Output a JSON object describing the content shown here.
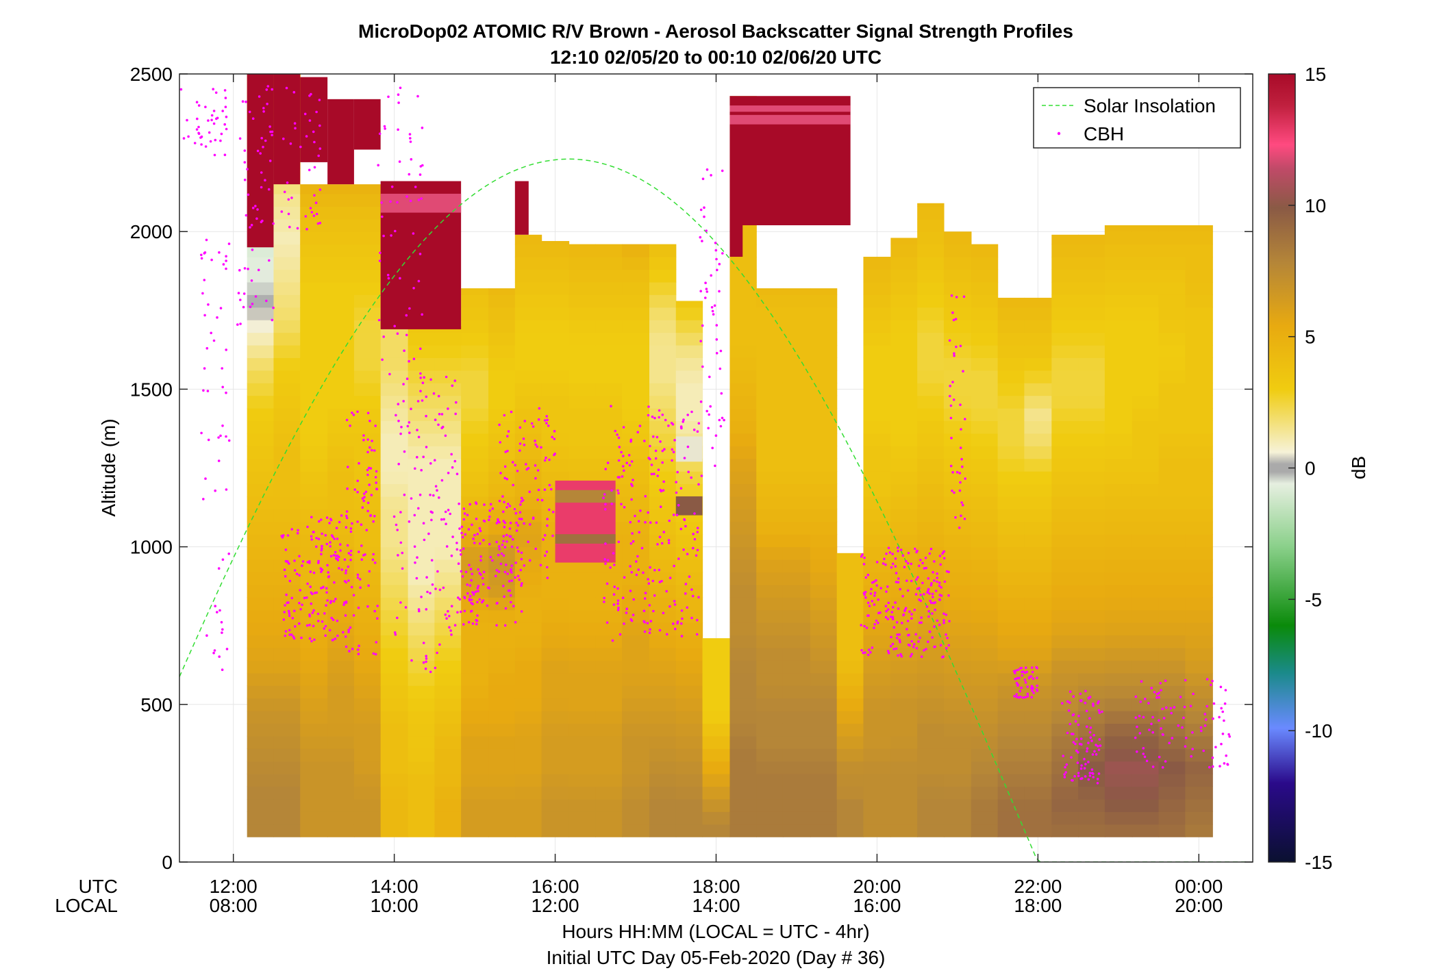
{
  "chart_data": {
    "type": "heatmap",
    "title": "MicroDop02 ATOMIC R/V Brown - Aerosol Backscatter Signal Strength Profiles",
    "subtitle": "12:10 02/05/20 to 00:10 02/06/20  UTC",
    "ylabel": "Altitude (m)",
    "xlabel": "Hours HH:MM  (LOCAL = UTC - 4hr)",
    "footnote": "Initial UTC Day 05-Feb-2020 (Day # 36)",
    "x_row_labels": [
      "UTC",
      "LOCAL"
    ],
    "xlim_hours": [
      11.33,
      24.67
    ],
    "ylim": [
      0,
      2500
    ],
    "y_ticks": [
      0,
      500,
      1000,
      1500,
      2000,
      2500
    ],
    "x_ticks": [
      {
        "hour": 12,
        "utc": "12:00",
        "local": "08:00"
      },
      {
        "hour": 14,
        "utc": "14:00",
        "local": "10:00"
      },
      {
        "hour": 16,
        "utc": "16:00",
        "local": "12:00"
      },
      {
        "hour": 18,
        "utc": "18:00",
        "local": "14:00"
      },
      {
        "hour": 20,
        "utc": "20:00",
        "local": "16:00"
      },
      {
        "hour": 22,
        "utc": "22:00",
        "local": "18:00"
      },
      {
        "hour": 24,
        "utc": "00:00",
        "local": "20:00"
      }
    ],
    "grid": true,
    "colorbar": {
      "label": "dB",
      "min": -15,
      "max": 15,
      "ticks": [
        -15,
        -10,
        -5,
        0,
        5,
        10,
        15
      ]
    },
    "legend": {
      "position": "top-right",
      "entries": [
        "Solar Insolation",
        "CBH"
      ]
    },
    "colors": {
      "solar": "#33dd33",
      "cbh": "#ff00ff"
    },
    "profiles": [
      {
        "t0": 12.17,
        "t1": 12.5,
        "top": 2500,
        "v": [
          8,
          8,
          7.5,
          7,
          6,
          5.5,
          5,
          4.5,
          4,
          3.5,
          3,
          2,
          0.5,
          -0.5,
          -1,
          0.5,
          2,
          3,
          4
        ]
      },
      {
        "t0": 12.5,
        "t1": 12.83,
        "top": 2500,
        "v": [
          8,
          8,
          7.5,
          7,
          6,
          5.5,
          5,
          4.5,
          4,
          4,
          3.5,
          3,
          2,
          1.5,
          1,
          1.5,
          2.5,
          3.5,
          4
        ]
      },
      {
        "t0": 12.83,
        "t1": 13.17,
        "top": 2150,
        "v": [
          7,
          7,
          7,
          6.5,
          6,
          5.5,
          5,
          4.5,
          4.5,
          4,
          3.5,
          3,
          3,
          3,
          3,
          3,
          3.5,
          4,
          5
        ]
      },
      {
        "t0": 13.17,
        "t1": 13.5,
        "top": 2150,
        "v": [
          7,
          7,
          7,
          6.5,
          6.5,
          6,
          5.5,
          5,
          4.5,
          4,
          4,
          3.5,
          3,
          3,
          3,
          3,
          3.5,
          4,
          5
        ]
      },
      {
        "t0": 13.5,
        "t1": 13.83,
        "top": 2150,
        "v": [
          7,
          7,
          6.5,
          6.5,
          6,
          5.5,
          5,
          4.5,
          4,
          4,
          3.5,
          3.5,
          3,
          2.5,
          2.5,
          3,
          3.5,
          4,
          5
        ]
      },
      {
        "t0": 13.83,
        "t1": 14.17,
        "top": 2150,
        "v": [
          4.5,
          4.5,
          4,
          4,
          3.5,
          3,
          2.5,
          2,
          1.5,
          1.5,
          1,
          1,
          1.5,
          2,
          2,
          2.5,
          3,
          3.5,
          4
        ]
      },
      {
        "t0": 14.17,
        "t1": 14.5,
        "top": 1700,
        "v": [
          4,
          4,
          4,
          3.5,
          3.5,
          3,
          2.5,
          2,
          1.5,
          1,
          1,
          1,
          1,
          1,
          1.5,
          2,
          2.5,
          3,
          3.5
        ]
      },
      {
        "t0": 14.5,
        "t1": 14.83,
        "top": 1700,
        "v": [
          5,
          5,
          4.5,
          4.5,
          4,
          3.5,
          3,
          2.5,
          2,
          1.5,
          1,
          1,
          1,
          1,
          1.5,
          2,
          2.5,
          3,
          3.5
        ]
      },
      {
        "t0": 14.83,
        "t1": 15.17,
        "top": 1820,
        "v": [
          6.5,
          6.5,
          6,
          6,
          5.5,
          5,
          5,
          5,
          6,
          6.5,
          5,
          4,
          3.5,
          3,
          2.5,
          2.5,
          3,
          3.5,
          4
        ]
      },
      {
        "t0": 15.17,
        "t1": 15.5,
        "top": 1820,
        "v": [
          6.5,
          6.5,
          6,
          6,
          5.5,
          5.5,
          5,
          5,
          6.5,
          7,
          5.5,
          4.5,
          4,
          3.5,
          3,
          3,
          3.5,
          4,
          4.5
        ]
      },
      {
        "t0": 15.5,
        "t1": 15.83,
        "top": 1990,
        "v": [
          6.5,
          6.5,
          6,
          6,
          5.5,
          5.5,
          5,
          5,
          5.5,
          6,
          5,
          4.5,
          4,
          3.5,
          3,
          3,
          3.5,
          4,
          4.5
        ]
      },
      {
        "t0": 15.83,
        "t1": 16.17,
        "top": 1970,
        "v": [
          7,
          7,
          6.5,
          6.5,
          6,
          6,
          5.5,
          5,
          5,
          5,
          4.5,
          4,
          3.5,
          3.5,
          3,
          3,
          3.5,
          4,
          4.5
        ]
      },
      {
        "t0": 16.17,
        "t1": 16.5,
        "top": 1960,
        "v": [
          7,
          7,
          6.5,
          6.5,
          6,
          6,
          5.5,
          5,
          5,
          5,
          4.5,
          4,
          3.5,
          3.5,
          3,
          3,
          3.5,
          4,
          4.5
        ]
      },
      {
        "t0": 16.5,
        "t1": 16.83,
        "top": 1960,
        "v": [
          7,
          7,
          6.5,
          6.5,
          6,
          6,
          5.5,
          5,
          5,
          5,
          4.5,
          4,
          3.5,
          3.5,
          3,
          3,
          3.5,
          4,
          4.5
        ]
      },
      {
        "t0": 16.83,
        "t1": 17.17,
        "top": 1960,
        "v": [
          7.5,
          7.5,
          7,
          7,
          6.5,
          6,
          6,
          5.5,
          5,
          5,
          4.5,
          4,
          3.5,
          3,
          3,
          3,
          3.5,
          4,
          5
        ]
      },
      {
        "t0": 17.17,
        "t1": 17.5,
        "top": 1960,
        "v": [
          8,
          8,
          7.5,
          7,
          6.5,
          6,
          5.5,
          5,
          4.5,
          4,
          3.5,
          3,
          2.5,
          2,
          1.5,
          1.5,
          2,
          3,
          4
        ]
      },
      {
        "t0": 17.5,
        "t1": 17.83,
        "top": 1780,
        "v": [
          8,
          8,
          7.5,
          7,
          6.5,
          6,
          5.5,
          5,
          4.5,
          4,
          3.5,
          3,
          2.5,
          1.5,
          1,
          1,
          1.5,
          2.5,
          3.5
        ]
      },
      {
        "t0": 17.83,
        "t1": 18.17,
        "top": 710,
        "v": [
          8,
          8,
          7.5,
          7,
          6.5,
          6,
          5.5,
          5,
          4.5,
          4,
          3.5,
          3,
          3,
          3,
          3,
          3,
          3,
          3,
          3
        ]
      },
      {
        "t0": 18.17,
        "t1": 18.5,
        "top": 2430,
        "v": [
          8.5,
          8.5,
          8.5,
          8,
          8,
          7.5,
          7.5,
          7,
          6.5,
          6,
          5,
          4.5,
          4,
          4,
          4,
          4,
          4,
          4,
          4.5
        ]
      },
      {
        "t0": 18.5,
        "t1": 18.83,
        "top": 1820,
        "v": [
          8.5,
          8.5,
          8.5,
          8,
          8,
          7.5,
          7.5,
          7,
          6.5,
          6,
          5,
          4.5,
          4,
          4,
          4,
          4,
          4,
          4,
          4.5
        ]
      },
      {
        "t0": 18.83,
        "t1": 19.17,
        "top": 1820,
        "v": [
          8.5,
          8.5,
          8.5,
          8,
          8,
          7.5,
          7.5,
          7,
          6.5,
          6,
          5,
          4.5,
          4,
          4,
          4,
          4,
          4,
          4,
          4.5
        ]
      },
      {
        "t0": 19.17,
        "t1": 19.5,
        "top": 1820,
        "v": [
          8.5,
          8.5,
          8.5,
          8,
          8,
          7.5,
          7,
          6.5,
          6,
          5.5,
          5,
          4.5,
          4,
          4,
          4,
          4,
          4,
          4,
          4.5
        ]
      },
      {
        "t0": 19.5,
        "t1": 19.83,
        "top": 980,
        "v": [
          8,
          8,
          8,
          7.5,
          7.5,
          7,
          6.5,
          6,
          5.5,
          5,
          4.5,
          4,
          4,
          4,
          4,
          4,
          4,
          4,
          4
        ]
      },
      {
        "t0": 19.83,
        "t1": 20.17,
        "top": 1920,
        "v": [
          7.5,
          7.5,
          7.5,
          7,
          7,
          6.5,
          6,
          5.5,
          5,
          4.5,
          4,
          3.5,
          3.5,
          3,
          3,
          3,
          3.5,
          4,
          4.5
        ]
      },
      {
        "t0": 20.17,
        "t1": 20.5,
        "top": 1980,
        "v": [
          7.5,
          7.5,
          7.5,
          7,
          7,
          6.5,
          6,
          5.5,
          5,
          4.5,
          4,
          3.5,
          3,
          3,
          3,
          3,
          3.5,
          4,
          4.5
        ]
      },
      {
        "t0": 20.5,
        "t1": 20.83,
        "top": 2090,
        "v": [
          8,
          8,
          7.5,
          7.5,
          7,
          6.5,
          6,
          5.5,
          5,
          4.5,
          4,
          3.5,
          3,
          2.5,
          2.5,
          3,
          3.5,
          4,
          4.5
        ]
      },
      {
        "t0": 20.83,
        "t1": 21.17,
        "top": 2000,
        "v": [
          8,
          8,
          7.5,
          7.5,
          7,
          6.5,
          6,
          5.5,
          5,
          4.5,
          4,
          3.5,
          3,
          2.5,
          2.5,
          3,
          3.5,
          4,
          4.5
        ]
      },
      {
        "t0": 21.17,
        "t1": 21.5,
        "top": 1960,
        "v": [
          8.5,
          8.5,
          8,
          7.5,
          7,
          6.5,
          6,
          5.5,
          5,
          4.5,
          4,
          3.5,
          3,
          2.5,
          2.5,
          3,
          3.5,
          4,
          4.5
        ]
      },
      {
        "t0": 21.5,
        "t1": 21.83,
        "top": 1790,
        "v": [
          9,
          9,
          8.5,
          8,
          7.5,
          7,
          6,
          5.5,
          5,
          4.5,
          4,
          3.5,
          3,
          2.5,
          2.5,
          3,
          3.5,
          4,
          4.5
        ]
      },
      {
        "t0": 21.83,
        "t1": 22.17,
        "top": 1790,
        "v": [
          9,
          9,
          8.5,
          8,
          7.5,
          7,
          6,
          5.5,
          5,
          4.5,
          4,
          3.5,
          3,
          2,
          1.5,
          2.5,
          3.5,
          4,
          4.5
        ]
      },
      {
        "t0": 22.17,
        "t1": 22.5,
        "top": 1990,
        "v": [
          9,
          9.5,
          9,
          8.5,
          7.5,
          7,
          6,
          5.5,
          5,
          4.5,
          4,
          3.5,
          3,
          2.5,
          2.5,
          3,
          3.5,
          4,
          4.5
        ]
      },
      {
        "t0": 22.5,
        "t1": 22.83,
        "top": 1990,
        "v": [
          9,
          9.5,
          10,
          9,
          8,
          7,
          6,
          5.5,
          5,
          4.5,
          4,
          3.5,
          3,
          2.5,
          2.5,
          3,
          3.5,
          4,
          4.5
        ]
      },
      {
        "t0": 22.83,
        "t1": 23.17,
        "top": 2020,
        "v": [
          9,
          10,
          10.5,
          9.5,
          8,
          7,
          6,
          5.5,
          5,
          4.5,
          4,
          3.5,
          3,
          3,
          3,
          3,
          3.5,
          4,
          4.5
        ]
      },
      {
        "t0": 23.17,
        "t1": 23.5,
        "top": 2020,
        "v": [
          9,
          10,
          10.5,
          9.5,
          8,
          7,
          6,
          5.5,
          5,
          4.5,
          4,
          3.5,
          3.5,
          3,
          3,
          3,
          3.5,
          4,
          4.5
        ]
      },
      {
        "t0": 23.5,
        "t1": 23.83,
        "top": 2020,
        "v": [
          9,
          9.5,
          10,
          9,
          8,
          7,
          6,
          5.5,
          5,
          4.5,
          4,
          4,
          3.5,
          3.5,
          3,
          3.5,
          3.5,
          4,
          4.5
        ]
      },
      {
        "t0": 23.83,
        "t1": 24.17,
        "top": 2020,
        "v": [
          8.5,
          9,
          9.5,
          8.5,
          7.5,
          6.5,
          6,
          5.5,
          5,
          4.5,
          4,
          4,
          3.5,
          3.5,
          3.5,
          3.5,
          4,
          4,
          4.5
        ]
      }
    ],
    "cloud_patches": [
      {
        "t0": 12.17,
        "t1": 12.5,
        "z0": 1950,
        "z1": 2500,
        "v": 15
      },
      {
        "t0": 12.5,
        "t1": 12.83,
        "z0": 2150,
        "z1": 2500,
        "v": 15
      },
      {
        "t0": 12.83,
        "t1": 13.17,
        "z0": 2220,
        "z1": 2490,
        "v": 15
      },
      {
        "t0": 13.17,
        "t1": 13.5,
        "z0": 2150,
        "z1": 2420,
        "v": 15
      },
      {
        "t0": 13.5,
        "t1": 13.83,
        "z0": 2260,
        "z1": 2420,
        "v": 15
      },
      {
        "t0": 13.83,
        "t1": 14.83,
        "z0": 1690,
        "z1": 2160,
        "v": 15
      },
      {
        "t0": 13.83,
        "t1": 14.83,
        "z0": 2060,
        "z1": 2120,
        "v": 12
      },
      {
        "t0": 15.5,
        "t1": 15.67,
        "z0": 1990,
        "z1": 2160,
        "v": 15
      },
      {
        "t0": 16.0,
        "t1": 16.75,
        "z0": 950,
        "z1": 1210,
        "v": 13
      },
      {
        "t0": 16.0,
        "t1": 16.75,
        "z0": 1140,
        "z1": 1180,
        "v": 8
      },
      {
        "t0": 16.0,
        "t1": 16.75,
        "z0": 1010,
        "z1": 1040,
        "v": 9
      },
      {
        "t0": 17.5,
        "t1": 17.83,
        "z0": 1100,
        "z1": 1160,
        "v": 10
      },
      {
        "t0": 17.5,
        "t1": 17.83,
        "z0": 1270,
        "z1": 1350,
        "v": 0.5
      },
      {
        "t0": 18.17,
        "t1": 19.67,
        "z0": 2020,
        "z1": 2430,
        "v": 15
      },
      {
        "t0": 18.17,
        "t1": 19.67,
        "z0": 2340,
        "z1": 2370,
        "v": 12
      },
      {
        "t0": 18.17,
        "t1": 19.67,
        "z0": 2380,
        "z1": 2400,
        "v": 12
      },
      {
        "t0": 18.17,
        "t1": 18.33,
        "z0": 1920,
        "z1": 2020,
        "v": 15
      }
    ],
    "solar_insolation": {
      "peak_hour": 16.17,
      "peak_altitude": 2230,
      "zero_hour": 22.0
    },
    "cbh_clusters": [
      {
        "t0": 11.35,
        "t1": 11.95,
        "z0": 2230,
        "z1": 2470,
        "n": 40
      },
      {
        "t0": 11.6,
        "t1": 11.95,
        "z0": 1150,
        "z1": 2000,
        "n": 40
      },
      {
        "t0": 11.6,
        "t1": 11.95,
        "z0": 600,
        "z1": 980,
        "n": 15
      },
      {
        "t0": 12.05,
        "t1": 12.5,
        "z0": 1700,
        "z1": 2470,
        "n": 60
      },
      {
        "t0": 12.6,
        "t1": 13.1,
        "z0": 2000,
        "z1": 2480,
        "n": 40
      },
      {
        "t0": 12.6,
        "t1": 13.4,
        "z0": 700,
        "z1": 1100,
        "n": 160
      },
      {
        "t0": 13.4,
        "t1": 13.8,
        "z0": 650,
        "z1": 1450,
        "n": 100
      },
      {
        "t0": 13.8,
        "t1": 14.4,
        "z0": 1500,
        "z1": 2470,
        "n": 60
      },
      {
        "t0": 14.0,
        "t1": 14.8,
        "z0": 600,
        "z1": 1550,
        "n": 130
      },
      {
        "t0": 14.8,
        "t1": 15.6,
        "z0": 750,
        "z1": 1150,
        "n": 160
      },
      {
        "t0": 15.3,
        "t1": 16.0,
        "z0": 900,
        "z1": 1450,
        "n": 90
      },
      {
        "t0": 16.6,
        "t1": 17.8,
        "z0": 700,
        "z1": 1450,
        "n": 220
      },
      {
        "t0": 17.8,
        "t1": 18.1,
        "z0": 1200,
        "z1": 2200,
        "n": 50
      },
      {
        "t0": 19.8,
        "t1": 20.9,
        "z0": 650,
        "z1": 1000,
        "n": 220
      },
      {
        "t0": 20.9,
        "t1": 21.1,
        "z0": 1050,
        "z1": 1800,
        "n": 40
      },
      {
        "t0": 21.7,
        "t1": 22.0,
        "z0": 520,
        "z1": 620,
        "n": 50
      },
      {
        "t0": 22.3,
        "t1": 22.8,
        "z0": 250,
        "z1": 550,
        "n": 90
      },
      {
        "t0": 23.2,
        "t1": 24.4,
        "z0": 300,
        "z1": 580,
        "n": 90
      }
    ]
  }
}
